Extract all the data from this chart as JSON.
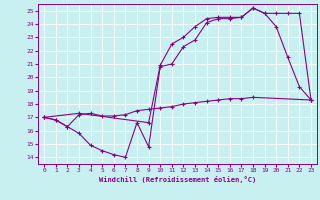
{
  "background_color": "#c8f0f0",
  "line_color": "#880088",
  "grid_color": "#ffffff",
  "xlim": [
    -0.5,
    23.5
  ],
  "ylim": [
    13.5,
    25.5
  ],
  "xticks": [
    0,
    1,
    2,
    3,
    4,
    5,
    6,
    7,
    8,
    9,
    10,
    11,
    12,
    13,
    14,
    15,
    16,
    17,
    18,
    19,
    20,
    21,
    22,
    23
  ],
  "yticks": [
    14,
    15,
    16,
    17,
    18,
    19,
    20,
    21,
    22,
    23,
    24,
    25
  ],
  "xlabel": "Windchill (Refroidissement éolien,°C)",
  "line1_x": [
    0,
    1,
    2,
    3,
    4,
    5,
    6,
    7,
    8,
    9,
    10,
    11,
    12,
    13,
    14,
    15,
    16,
    17,
    18,
    19,
    20,
    21,
    22,
    23
  ],
  "line1_y": [
    17.0,
    16.8,
    16.3,
    15.8,
    14.9,
    14.5,
    14.2,
    14.0,
    16.6,
    14.8,
    20.8,
    21.0,
    22.3,
    22.8,
    24.1,
    24.4,
    24.4,
    24.5,
    25.2,
    24.8,
    23.8,
    21.5,
    19.3,
    18.3
  ],
  "line2_x": [
    0,
    1,
    2,
    3,
    4,
    5,
    6,
    7,
    8,
    9,
    10,
    11,
    12,
    13,
    14,
    15,
    16,
    17,
    18,
    23
  ],
  "line2_y": [
    17.0,
    16.8,
    16.3,
    17.2,
    17.3,
    17.1,
    17.1,
    17.2,
    17.5,
    17.6,
    17.7,
    17.8,
    18.0,
    18.1,
    18.2,
    18.3,
    18.4,
    18.4,
    18.5,
    18.3
  ],
  "line3_x": [
    0,
    3,
    9,
    10,
    11,
    12,
    13,
    14,
    15,
    16,
    17,
    18,
    19,
    20,
    21,
    22,
    23
  ],
  "line3_y": [
    17.0,
    17.3,
    16.6,
    20.9,
    22.5,
    23.0,
    23.8,
    24.4,
    24.5,
    24.5,
    24.5,
    25.2,
    24.8,
    24.8,
    24.8,
    24.8,
    18.3
  ]
}
